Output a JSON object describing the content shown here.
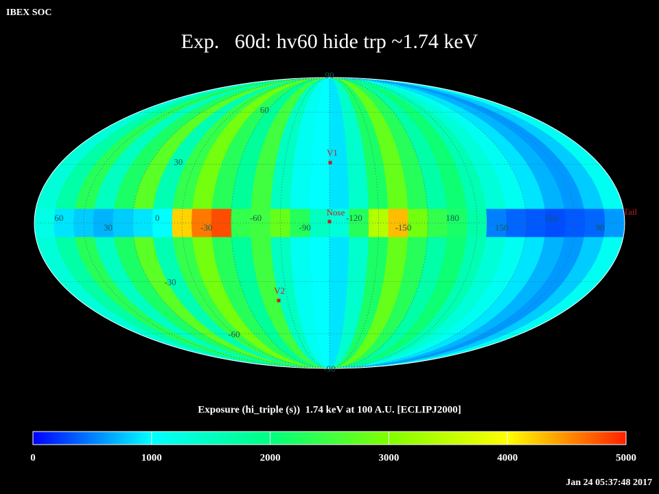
{
  "chart_data": {
    "type": "mollweide",
    "corner_label": "IBEX SOC",
    "title": "Exp.   60d: hv60 hide trp ~1.74 keV",
    "colorbar_label": "Exposure (hi_triple (s))  1.74 keV at 100 A.U. [ECLIPJ2000]",
    "timestamp": "Jan 24 05:37:48 2017",
    "clim": [
      0,
      5000
    ],
    "cticks": [
      0,
      1000,
      2000,
      3000,
      4000,
      5000
    ],
    "colormap": [
      "#0000ff",
      "#00ffff",
      "#00ff80",
      "#80ff00",
      "#ffff00",
      "#ff2000"
    ],
    "band_values": [
      1300,
      1700,
      2300,
      1500,
      2200,
      2700,
      1600,
      2400,
      2900,
      2300,
      1800,
      2500,
      1500,
      1100,
      1000,
      900,
      1400,
      2200,
      2800,
      2300,
      1700,
      2100,
      1600,
      1300,
      1100,
      900,
      700,
      600,
      800,
      1100
    ],
    "equator_values": [
      1200,
      900,
      800,
      700,
      800,
      900,
      1000,
      4200,
      4600,
      4800,
      2400,
      2500,
      2800,
      2300,
      1500,
      1300,
      2300,
      3400,
      4300,
      2900,
      2400,
      2200,
      1700,
      500,
      400,
      350,
      300,
      350,
      400,
      600
    ],
    "lon_labels": [
      60,
      30,
      0,
      -30,
      -60,
      -90,
      -120,
      -150,
      180,
      150,
      120,
      90
    ],
    "lat_labels": [
      90,
      60,
      30,
      -30,
      -60,
      -90
    ],
    "markers": [
      "V1",
      "Nose",
      "V2",
      "Tail"
    ]
  }
}
